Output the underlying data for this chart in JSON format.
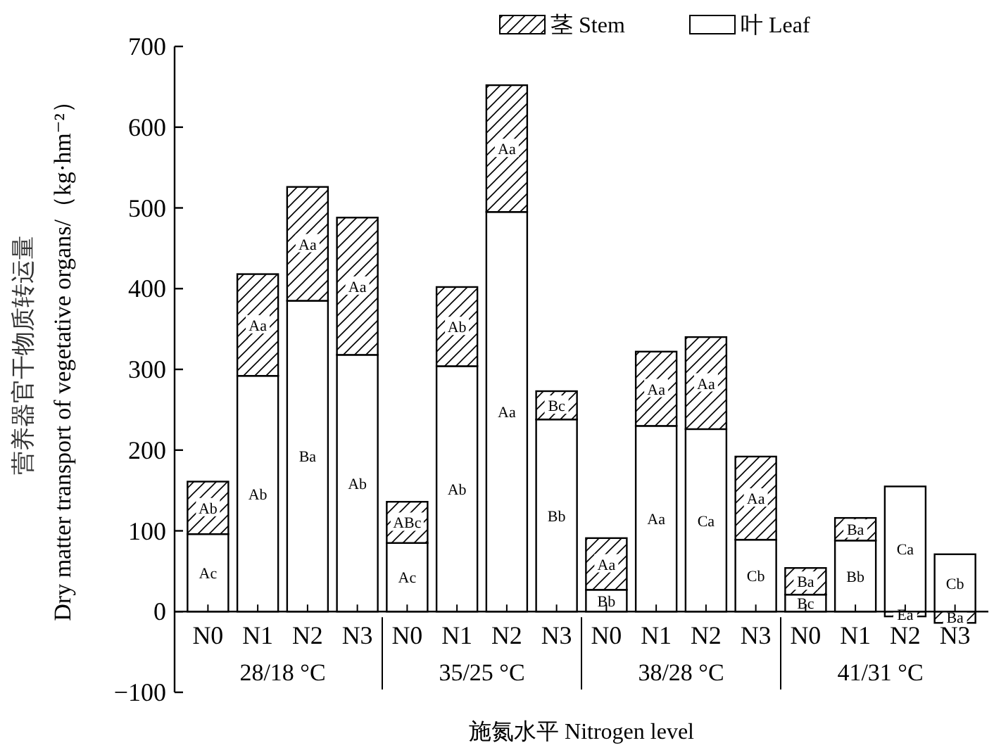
{
  "chart_data": {
    "type": "bar",
    "stacked": true,
    "xlabel": "施氮水平 Nitrogen level",
    "ylabel": "营养器官干物质转运量\nDry matter transport of  vegetative organs/（kg·hm⁻²）",
    "categories": [
      "N0",
      "N1",
      "N2",
      "N3",
      "N0",
      "N1",
      "N2",
      "N3",
      "N0",
      "N1",
      "N2",
      "N3",
      "N0",
      "N1",
      "N2",
      "N3"
    ],
    "annotations": [
      "28/18 °C",
      "35/25 °C",
      "38/28 °C",
      "41/31 °C"
    ],
    "series": [
      {
        "name": "叶 Leaf",
        "color": "#ffffff",
        "values": [
          96,
          292,
          385,
          318,
          85,
          304,
          495,
          238,
          27,
          230,
          226,
          89,
          21,
          88,
          155,
          71
        ],
        "value_labels": [
          "Ac",
          "Ab",
          "Ba",
          "Ab",
          "Ac",
          "Ab",
          "Aa",
          "Bb",
          "Bb",
          "Aa",
          "Ca",
          "Cb",
          "Bc",
          "Bb",
          "Ca",
          "Cb"
        ]
      },
      {
        "name": "茎 Stem",
        "color": "#000000",
        "values": [
          65,
          126,
          141,
          170,
          51,
          98,
          157,
          35,
          64,
          92,
          114,
          103,
          33,
          28,
          -6,
          -14
        ],
        "value_labels": [
          "Ab",
          "Aa",
          "Aa",
          "Aa",
          "ABc",
          "Ab",
          "Aa",
          "Bc",
          "Aa",
          "Aa",
          "Aa",
          "Aa",
          "Ba",
          "Ba",
          "Ea",
          "Ba"
        ]
      }
    ],
    "ylim": [
      -100,
      700
    ],
    "yticks": [
      -100,
      0,
      100,
      200,
      300,
      400,
      500,
      600,
      700
    ],
    "legend": "top",
    "grid": false
  }
}
